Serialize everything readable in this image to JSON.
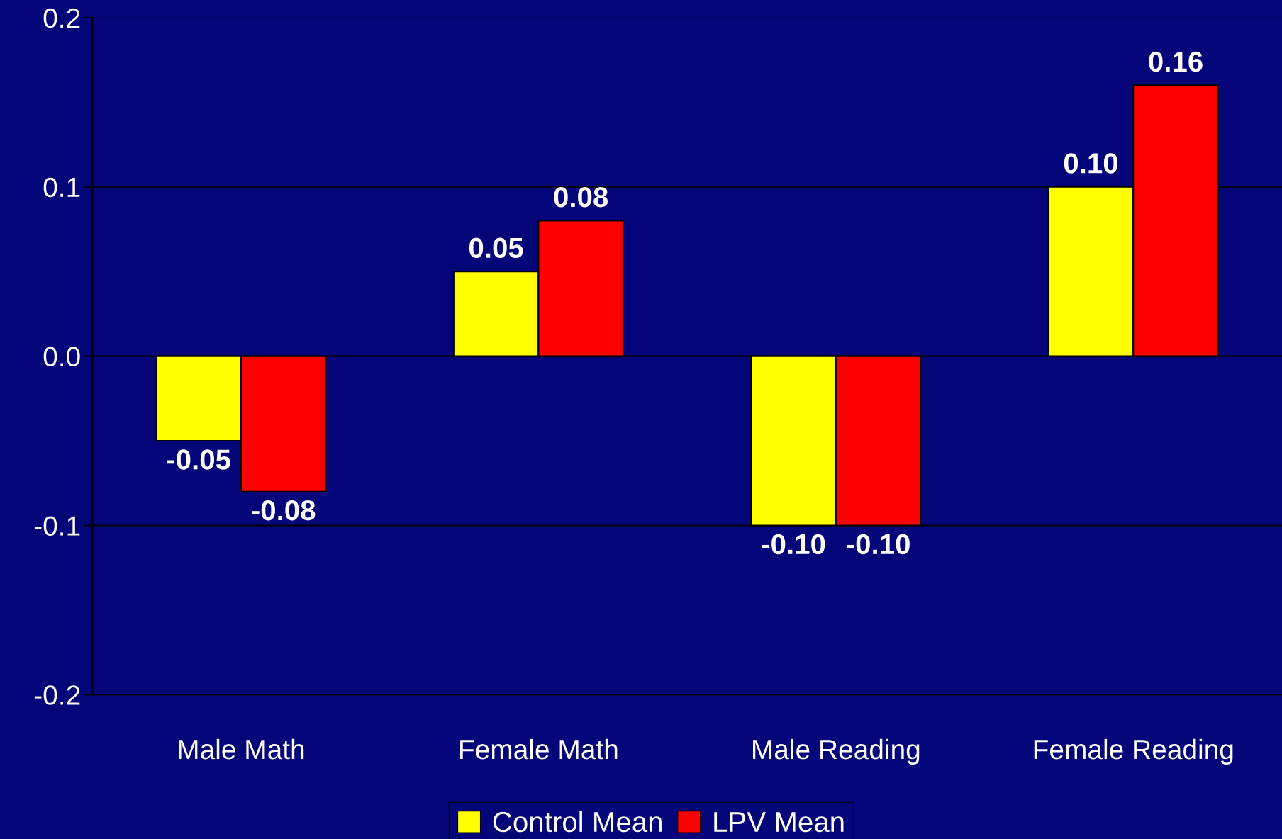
{
  "chart_data": {
    "type": "bar",
    "categories": [
      "Male Math",
      "Female Math",
      "Male Reading",
      "Female Reading"
    ],
    "series": [
      {
        "name": "Control Mean",
        "color": "#ffff00",
        "values": [
          -0.05,
          0.05,
          -0.1,
          0.1
        ],
        "value_labels": [
          "-0.05",
          "0.05",
          "-0.10",
          "0.10"
        ]
      },
      {
        "name": "LPV Mean",
        "color": "#ff0000",
        "values": [
          -0.08,
          0.08,
          -0.1,
          0.16
        ],
        "value_labels": [
          "-0.08",
          "0.08",
          "-0.10",
          "0.16"
        ]
      }
    ],
    "ylim": [
      -0.2,
      0.2
    ],
    "yticks": [
      {
        "value": -0.2,
        "label": "-0.2"
      },
      {
        "value": -0.1,
        "label": "-0.1"
      },
      {
        "value": 0,
        "label": "0.0"
      },
      {
        "value": 0.1,
        "label": "0.1"
      },
      {
        "value": 0.2,
        "label": "0.2"
      }
    ],
    "grid": "y",
    "legend": "bottom"
  }
}
